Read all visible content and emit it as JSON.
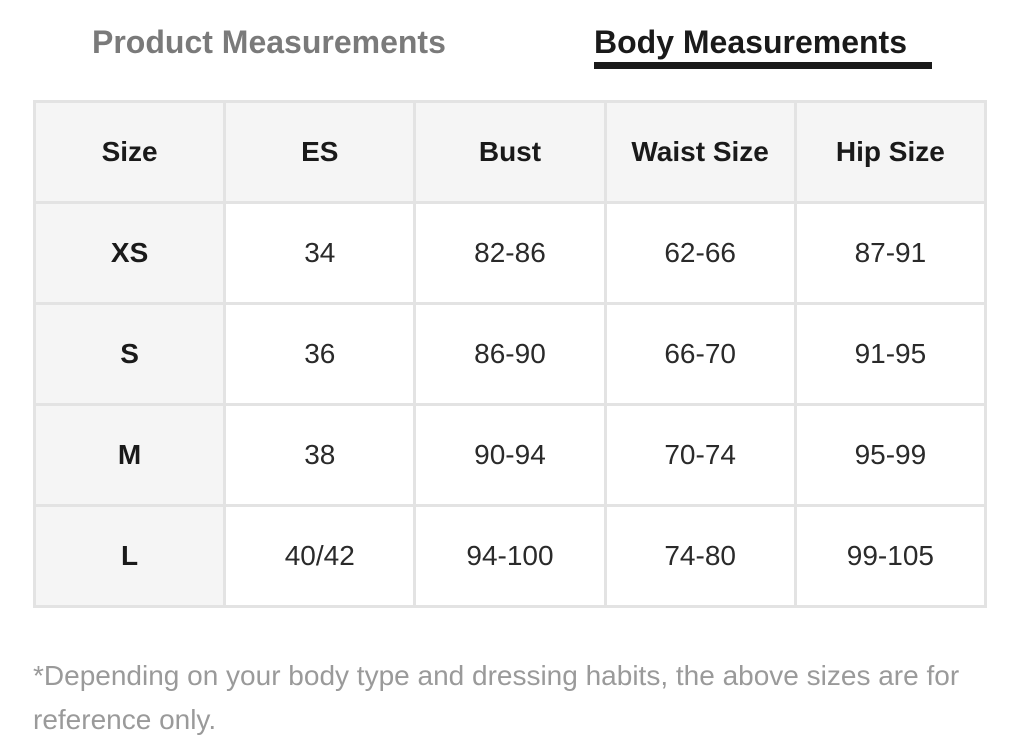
{
  "tabs": {
    "product": "Product Measurements",
    "body": "Body Measurements",
    "active": "body"
  },
  "table": {
    "headers": [
      "Size",
      "ES",
      "Bust",
      "Waist Size",
      "Hip Size"
    ],
    "rows": [
      [
        "XS",
        "34",
        "82-86",
        "62-66",
        "87-91"
      ],
      [
        "S",
        "36",
        "86-90",
        "66-70",
        "91-95"
      ],
      [
        "M",
        "38",
        "90-94",
        "70-74",
        "95-99"
      ],
      [
        "L",
        "40/42",
        "94-100",
        "74-80",
        "99-105"
      ]
    ]
  },
  "note": "*Depending on your body type and dressing habits, the above sizes are for reference only.",
  "colors": {
    "active_tab": "#1a1a1a",
    "inactive_tab": "#7a7a7a",
    "header_bg": "#f5f5f5",
    "border": "#e3e3e3",
    "note_text": "#9a9a9a"
  }
}
